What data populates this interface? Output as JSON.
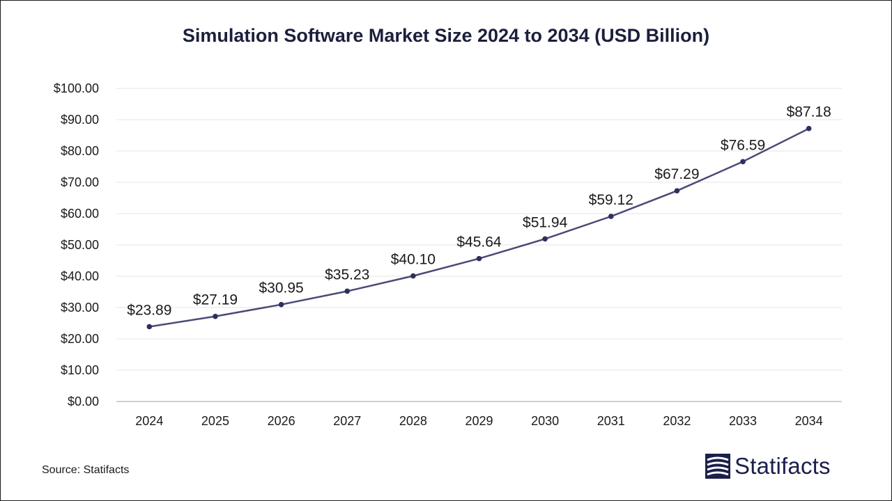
{
  "chart_data": {
    "type": "line",
    "title": "Simulation Software Market Size 2024 to 2034 (USD Billion)",
    "x": [
      "2024",
      "2025",
      "2026",
      "2027",
      "2028",
      "2029",
      "2030",
      "2031",
      "2032",
      "2033",
      "2034"
    ],
    "values": [
      23.89,
      27.19,
      30.95,
      35.23,
      40.1,
      45.64,
      51.94,
      59.12,
      67.29,
      76.59,
      87.18
    ],
    "data_labels": [
      "$23.89",
      "$27.19",
      "$30.95",
      "$35.23",
      "$40.10",
      "$45.64",
      "$51.94",
      "$59.12",
      "$67.29",
      "$76.59",
      "$87.18"
    ],
    "y_ticks": [
      0,
      10,
      20,
      30,
      40,
      50,
      60,
      70,
      80,
      90,
      100
    ],
    "y_tick_labels": [
      "$0.00",
      "$10.00",
      "$20.00",
      "$30.00",
      "$40.00",
      "$50.00",
      "$60.00",
      "$70.00",
      "$80.00",
      "$90.00",
      "$100.00"
    ],
    "ylim": [
      0,
      100
    ],
    "xlabel": "",
    "ylabel": "",
    "grid": true,
    "line_color": "#4a4a78"
  },
  "footer": {
    "source": "Source: Statifacts",
    "brand": "Statifacts"
  },
  "colors": {
    "title": "#1b1f3b",
    "brand": "#1b1f4b"
  }
}
